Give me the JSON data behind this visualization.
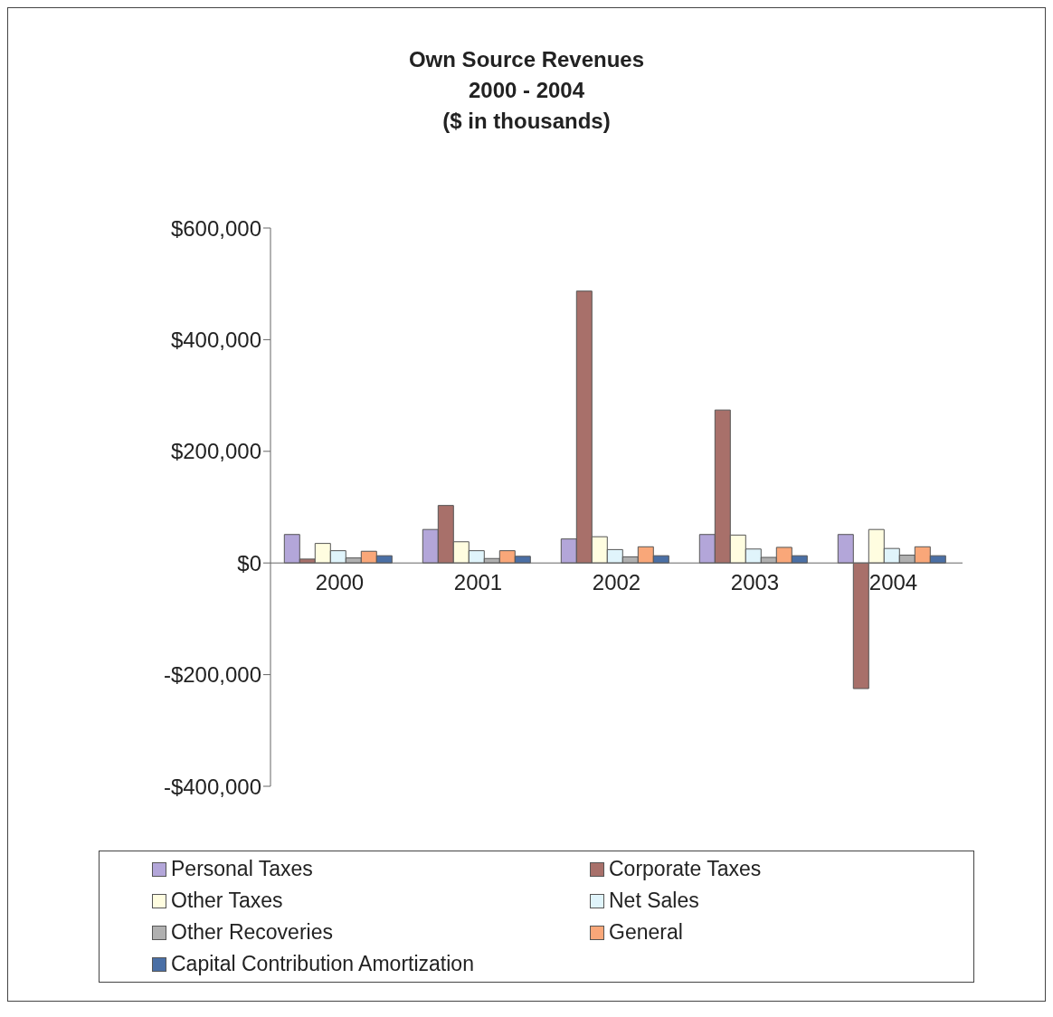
{
  "chart_data": {
    "type": "bar",
    "title": "Own Source Revenues\n2000 - 2004\n($ in thousands)",
    "categories": [
      "2000",
      "2001",
      "2002",
      "2003",
      "2004"
    ],
    "series": [
      {
        "name": "Personal Taxes",
        "color": "#b3a6d9",
        "values": [
          51000,
          60000,
          43000,
          51000,
          51000
        ]
      },
      {
        "name": "Corporate Taxes",
        "color": "#a8706a",
        "values": [
          7000,
          103000,
          487000,
          274000,
          -225000
        ]
      },
      {
        "name": "Other Taxes",
        "color": "#fffde0",
        "values": [
          35000,
          38000,
          47000,
          50000,
          60000
        ]
      },
      {
        "name": "Net Sales",
        "color": "#e0f4fb",
        "values": [
          22000,
          22000,
          24000,
          25000,
          26000
        ]
      },
      {
        "name": "Other Recoveries",
        "color": "#b0b0b0",
        "values": [
          9000,
          8000,
          11000,
          10000,
          14000
        ]
      },
      {
        "name": "General",
        "color": "#f9a779",
        "values": [
          21000,
          22000,
          29000,
          28000,
          29000
        ]
      },
      {
        "name": "Capital Contribution Amortization",
        "color": "#4a6fa5",
        "values": [
          13000,
          12000,
          13000,
          13000,
          13000
        ]
      }
    ],
    "ylim": [
      -400000,
      600000
    ],
    "yticks": [
      {
        "value": -400000,
        "label": "-$400,000"
      },
      {
        "value": -200000,
        "label": "-$200,000"
      },
      {
        "value": 0,
        "label": "$0"
      },
      {
        "value": 200000,
        "label": "$200,000"
      },
      {
        "value": 400000,
        "label": "$400,000"
      },
      {
        "value": 600000,
        "label": "$600,000"
      }
    ],
    "grid": false,
    "legend": "bottom"
  }
}
